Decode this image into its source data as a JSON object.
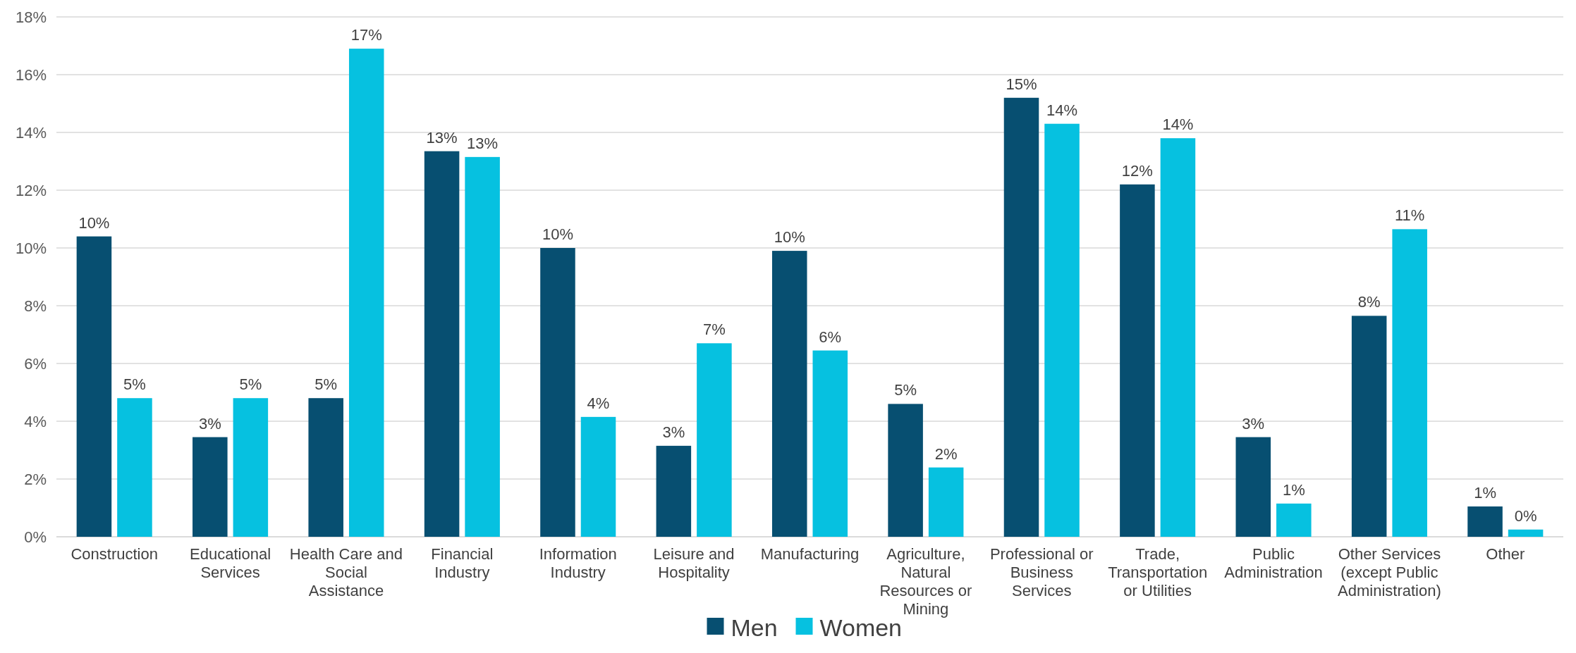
{
  "chart_data": {
    "type": "bar",
    "categories": [
      "Construction",
      "Educational Services",
      "Health Care and Social Assistance",
      "Financial Industry",
      "Information Industry",
      "Leisure and Hospitality",
      "Manufacturing",
      "Agriculture, Natural Resources or Mining",
      "Professional or Business Services",
      "Trade, Transportation or Utilities",
      "Public Administration",
      "Other Services (except Public Administration)",
      "Other"
    ],
    "series": [
      {
        "name": "Men",
        "color": "#074f71",
        "values": [
          10.4,
          3.45,
          4.8,
          13.35,
          10.0,
          3.15,
          9.9,
          4.6,
          15.2,
          12.2,
          3.45,
          7.65,
          1.05
        ],
        "value_labels": [
          "10%",
          "3%",
          "5%",
          "13%",
          "10%",
          "3%",
          "10%",
          "5%",
          "15%",
          "12%",
          "3%",
          "8%",
          "1%"
        ]
      },
      {
        "name": "Women",
        "color": "#06c1e0",
        "values": [
          4.8,
          4.8,
          16.9,
          13.15,
          4.15,
          6.7,
          6.45,
          2.4,
          14.3,
          13.8,
          1.15,
          10.65,
          0.25
        ],
        "value_labels": [
          "5%",
          "5%",
          "17%",
          "13%",
          "4%",
          "7%",
          "6%",
          "2%",
          "14%",
          "14%",
          "1%",
          "11%",
          "0%"
        ]
      }
    ],
    "ylim": [
      0,
      18
    ],
    "yticks": [
      {
        "value": 0,
        "label": "0%"
      },
      {
        "value": 2,
        "label": "2%"
      },
      {
        "value": 4,
        "label": "4%"
      },
      {
        "value": 6,
        "label": "6%"
      },
      {
        "value": 8,
        "label": "8%"
      },
      {
        "value": 10,
        "label": "10%"
      },
      {
        "value": 12,
        "label": "12%"
      },
      {
        "value": 14,
        "label": "14%"
      },
      {
        "value": 16,
        "label": "16%"
      },
      {
        "value": 18,
        "label": "18%"
      }
    ],
    "grid": "y",
    "legend": "bottom"
  }
}
